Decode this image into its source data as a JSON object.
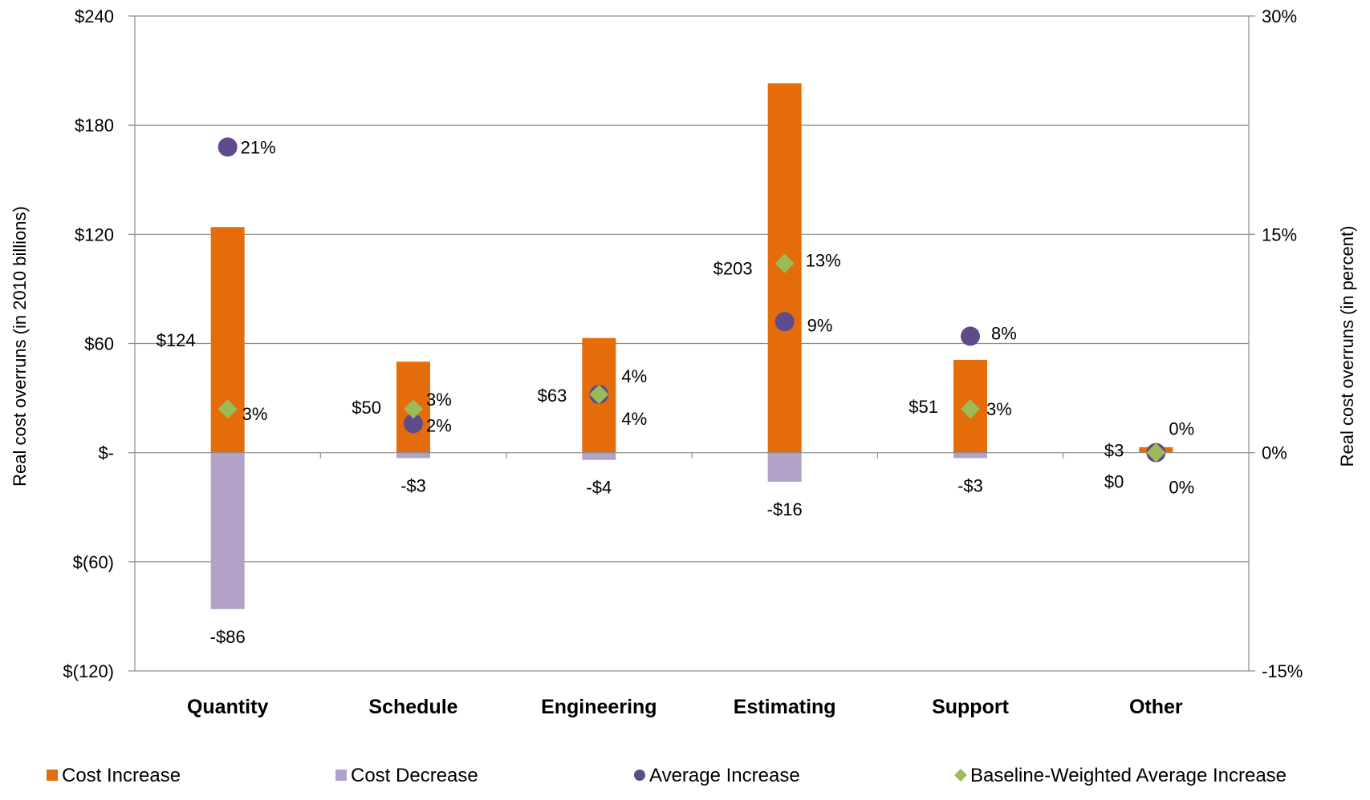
{
  "chart_data": {
    "type": "bar",
    "categories": [
      "Quantity",
      "Schedule",
      "Engineering",
      "Estimating",
      "Support",
      "Other"
    ],
    "series": [
      {
        "name": "Cost Increase",
        "axis": "left",
        "color": "#e46c0a",
        "values": [
          124,
          50,
          63,
          203,
          51,
          3
        ],
        "labels": [
          "$124",
          "$50",
          "$63",
          "$203",
          "$51",
          "$3"
        ]
      },
      {
        "name": "Cost Decrease",
        "axis": "left",
        "color": "#b3a2c7",
        "values": [
          -86,
          -3,
          -4,
          -16,
          -3,
          0
        ],
        "labels": [
          "-$86",
          "-$3",
          "-$4",
          "-$16",
          "-$3",
          "$0"
        ]
      },
      {
        "name": "Average Increase",
        "axis": "right",
        "marker": "circle",
        "color": "#5f4b8b",
        "values": [
          21,
          2,
          4,
          9,
          8,
          0
        ],
        "labels": [
          "21%",
          "2%",
          "4%",
          "9%",
          "8%",
          "0%"
        ]
      },
      {
        "name": "Baseline-Weighted Average Increase",
        "axis": "right",
        "marker": "diamond",
        "color": "#9bbb59",
        "values": [
          3,
          3,
          4,
          13,
          3,
          0
        ],
        "labels": [
          "3%",
          "3%",
          "4%",
          "13%",
          "3%",
          "0%"
        ]
      }
    ],
    "ylabel": "Real cost overruns (in 2010 billions)",
    "y2label": "Real cost overruns (in percent)",
    "ylim": [
      -120,
      240
    ],
    "y2lim": [
      -15,
      30
    ],
    "yticks": [
      240,
      180,
      120,
      60,
      0,
      -60,
      -120
    ],
    "ytick_labels": [
      "$240",
      "$180",
      "$120",
      "$60",
      "$-",
      "$(60)",
      "$(120)"
    ],
    "y2ticks": [
      30,
      15,
      0,
      -15
    ],
    "y2tick_labels": [
      "30%",
      "15%",
      "0%",
      "-15%"
    ],
    "grid": true,
    "legend": "bottom"
  }
}
